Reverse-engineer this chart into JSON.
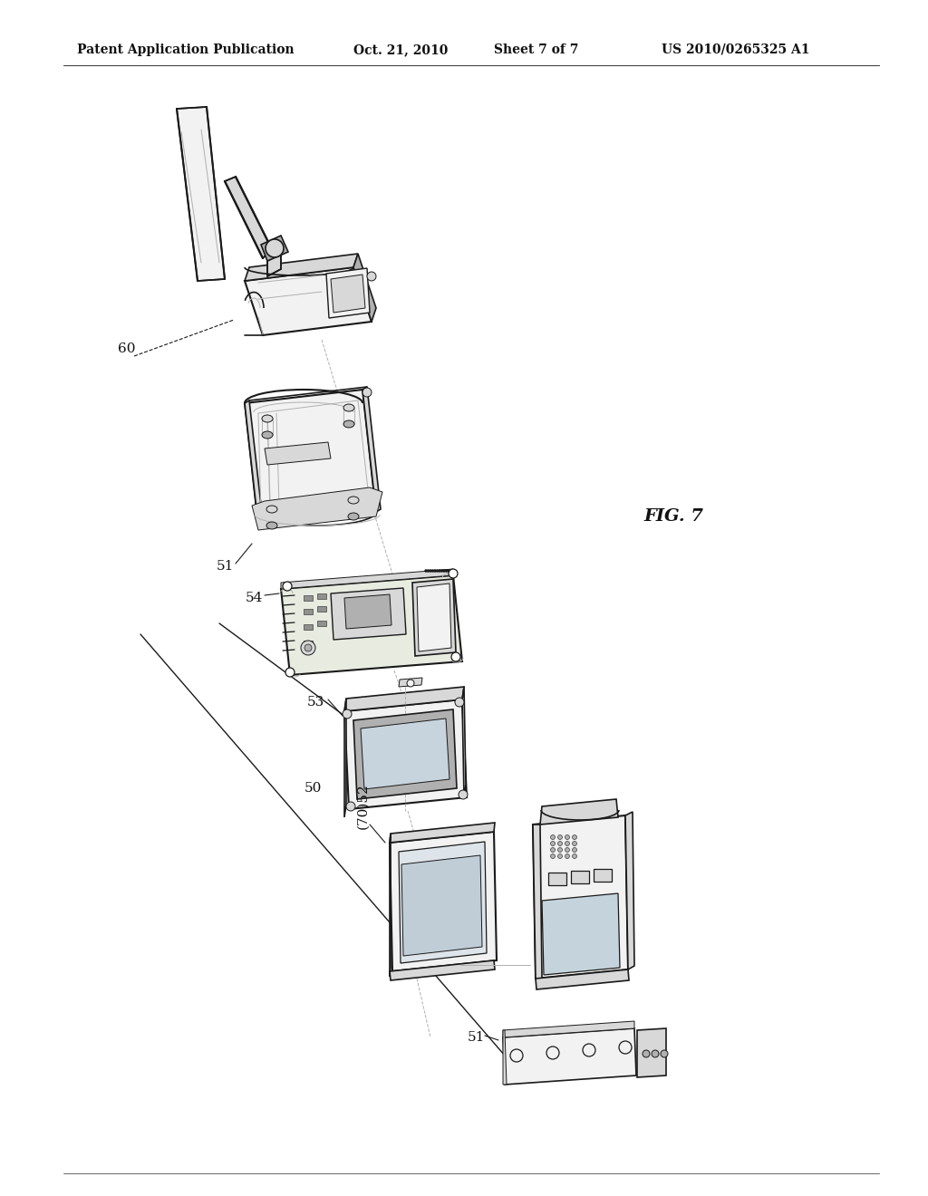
{
  "background_color": "#ffffff",
  "header_left": "Patent Application Publication",
  "header_mid1": "Oct. 21, 2010",
  "header_mid2": "Sheet 7 of 7",
  "header_right": "US 2010/0265325 A1",
  "fig_label": "FIG. 7",
  "line_color": "#1a1a1a",
  "text_color": "#111111",
  "lw_main": 1.2,
  "lw_thin": 0.7,
  "lw_thick": 1.8,
  "gray_light": "#f2f2f2",
  "gray_mid": "#d8d8d8",
  "gray_dark": "#b0b0b0",
  "gray_darker": "#888888"
}
